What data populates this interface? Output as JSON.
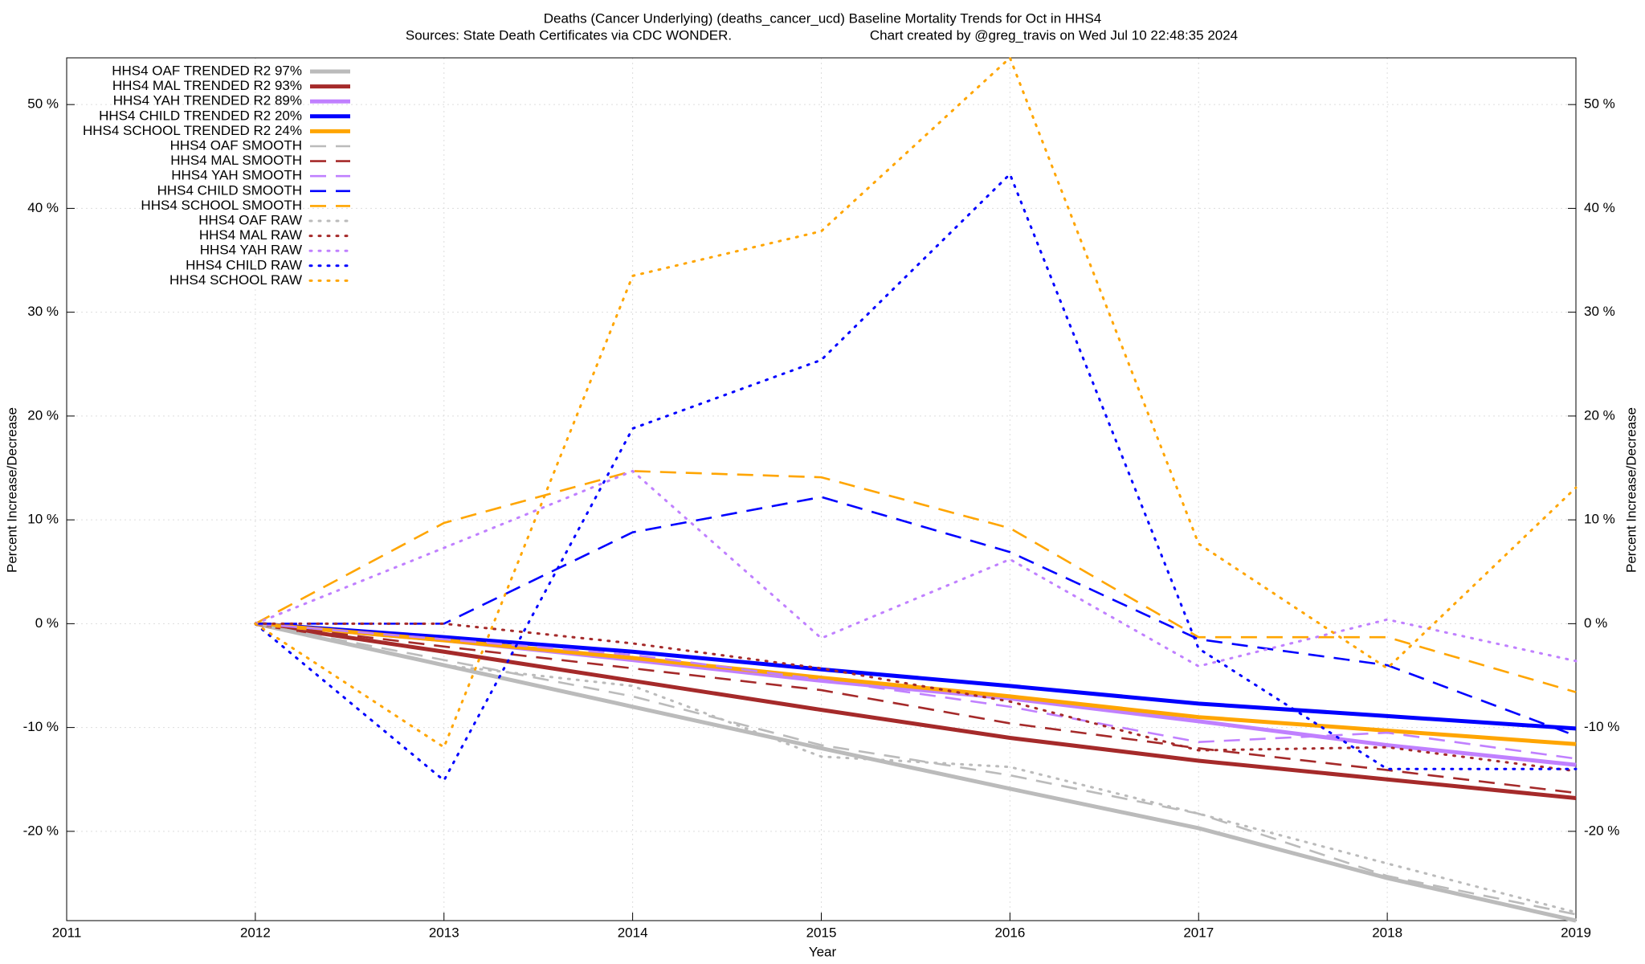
{
  "chart_data": {
    "type": "line",
    "title": "Deaths (Cancer Underlying) (deaths_cancer_ucd)  Baseline Mortality Trends for Oct in HHS4",
    "subtitle": "Sources: State Death Certificates via CDC WONDER.",
    "credit": "Chart created by @greg_travis on Wed Jul 10 22:48:35 2024",
    "x_label": "Year",
    "y_label": "Percent Increase/Decrease",
    "x": [
      2012,
      2013,
      2014,
      2015,
      2016,
      2017,
      2018,
      2019
    ],
    "xlim": [
      2011,
      2019
    ],
    "xticks": [
      2011,
      2012,
      2013,
      2014,
      2015,
      2016,
      2017,
      2018,
      2019
    ],
    "ylim": [
      -28.6,
      54.5
    ],
    "yticks": [
      {
        "value": -20,
        "label": "-20 %"
      },
      {
        "value": -10,
        "label": "-10 %"
      },
      {
        "value": 0,
        "label": "0 %"
      },
      {
        "value": 10,
        "label": "10 %"
      },
      {
        "value": 20,
        "label": "20 %"
      },
      {
        "value": 30,
        "label": "30 %"
      },
      {
        "value": 40,
        "label": "40 %"
      },
      {
        "value": 50,
        "label": "50 %"
      }
    ],
    "grid": true,
    "legend": "top-left",
    "series": [
      {
        "name": "HHS4 OAF TRENDED R2  97%",
        "color": "#bbbbbb",
        "style": "solid",
        "values": [
          0,
          -4,
          -8,
          -12,
          -15.9,
          -19.7,
          -24.5,
          -28.6
        ]
      },
      {
        "name": "HHS4 MAL TRENDED R2  93%",
        "color": "#a52a2a",
        "style": "solid",
        "values": [
          0,
          -2.7,
          -5.5,
          -8.3,
          -11,
          -13.2,
          -15,
          -16.8
        ]
      },
      {
        "name": "HHS4 YAH TRENDED R2  89%",
        "color": "#c080ff",
        "style": "solid",
        "values": [
          0,
          -1.6,
          -3.5,
          -5.5,
          -7.2,
          -9.4,
          -11.7,
          -13.6
        ]
      },
      {
        "name": "HHS4 CHILD TRENDED R2  20%",
        "color": "#0000ff",
        "style": "solid",
        "values": [
          0,
          -1.3,
          -2.7,
          -4.4,
          -6,
          -7.7,
          -8.9,
          -10.1
        ]
      },
      {
        "name": "HHS4 SCHOOL TRENDED R2  24%",
        "color": "#ffa500",
        "style": "solid",
        "values": [
          0,
          -1.6,
          -3.3,
          -5.2,
          -7,
          -9,
          -10.3,
          -11.6
        ]
      },
      {
        "name": "HHS4 OAF SMOOTH",
        "color": "#bbbbbb",
        "style": "dash",
        "values": [
          0,
          -3.5,
          -7,
          -11.7,
          -14.6,
          -18.3,
          -24.3,
          -28
        ]
      },
      {
        "name": "HHS4 MAL SMOOTH",
        "color": "#a52a2a",
        "style": "dash",
        "values": [
          0,
          -2.2,
          -4.3,
          -6.4,
          -9.6,
          -12,
          -14.1,
          -16.3
        ]
      },
      {
        "name": "HHS4 YAH SMOOTH",
        "color": "#c080ff",
        "style": "dash",
        "values": [
          0,
          -1.5,
          -3,
          -5.4,
          -8,
          -11.4,
          -10.5,
          -13
        ]
      },
      {
        "name": "HHS4 CHILD SMOOTH",
        "color": "#0000ff",
        "style": "dash",
        "values": [
          0,
          0,
          8.8,
          12.2,
          6.9,
          -1.5,
          -4,
          -10.8
        ]
      },
      {
        "name": "HHS4 SCHOOL SMOOTH",
        "color": "#ffa500",
        "style": "dash",
        "values": [
          0,
          9.7,
          14.7,
          14.1,
          9.2,
          -1.3,
          -1.3,
          -6.6
        ]
      },
      {
        "name": "HHS4 OAF RAW",
        "color": "#bbbbbb",
        "style": "dot",
        "values": [
          0,
          -4,
          -6,
          -12.8,
          -13.8,
          -18.3,
          -23.1,
          -27.8
        ]
      },
      {
        "name": "HHS4 MAL RAW",
        "color": "#a52a2a",
        "style": "dot",
        "values": [
          0,
          0,
          -1.9,
          -4.3,
          -7.5,
          -12.2,
          -11.9,
          -14.2
        ]
      },
      {
        "name": "HHS4 YAH RAW",
        "color": "#c080ff",
        "style": "dot",
        "values": [
          0,
          7.3,
          14.7,
          -1.4,
          6.2,
          -4.1,
          0.4,
          -3.6
        ]
      },
      {
        "name": "HHS4 CHILD RAW",
        "color": "#0000ff",
        "style": "dot",
        "values": [
          0,
          -15.1,
          18.8,
          25.4,
          43.3,
          -2.4,
          -14,
          -14
        ]
      },
      {
        "name": "HHS4 SCHOOL RAW",
        "color": "#ffa500",
        "style": "dot",
        "values": [
          0,
          -11.9,
          33.5,
          37.8,
          54.5,
          7.7,
          -4.3,
          13.1
        ]
      }
    ]
  }
}
